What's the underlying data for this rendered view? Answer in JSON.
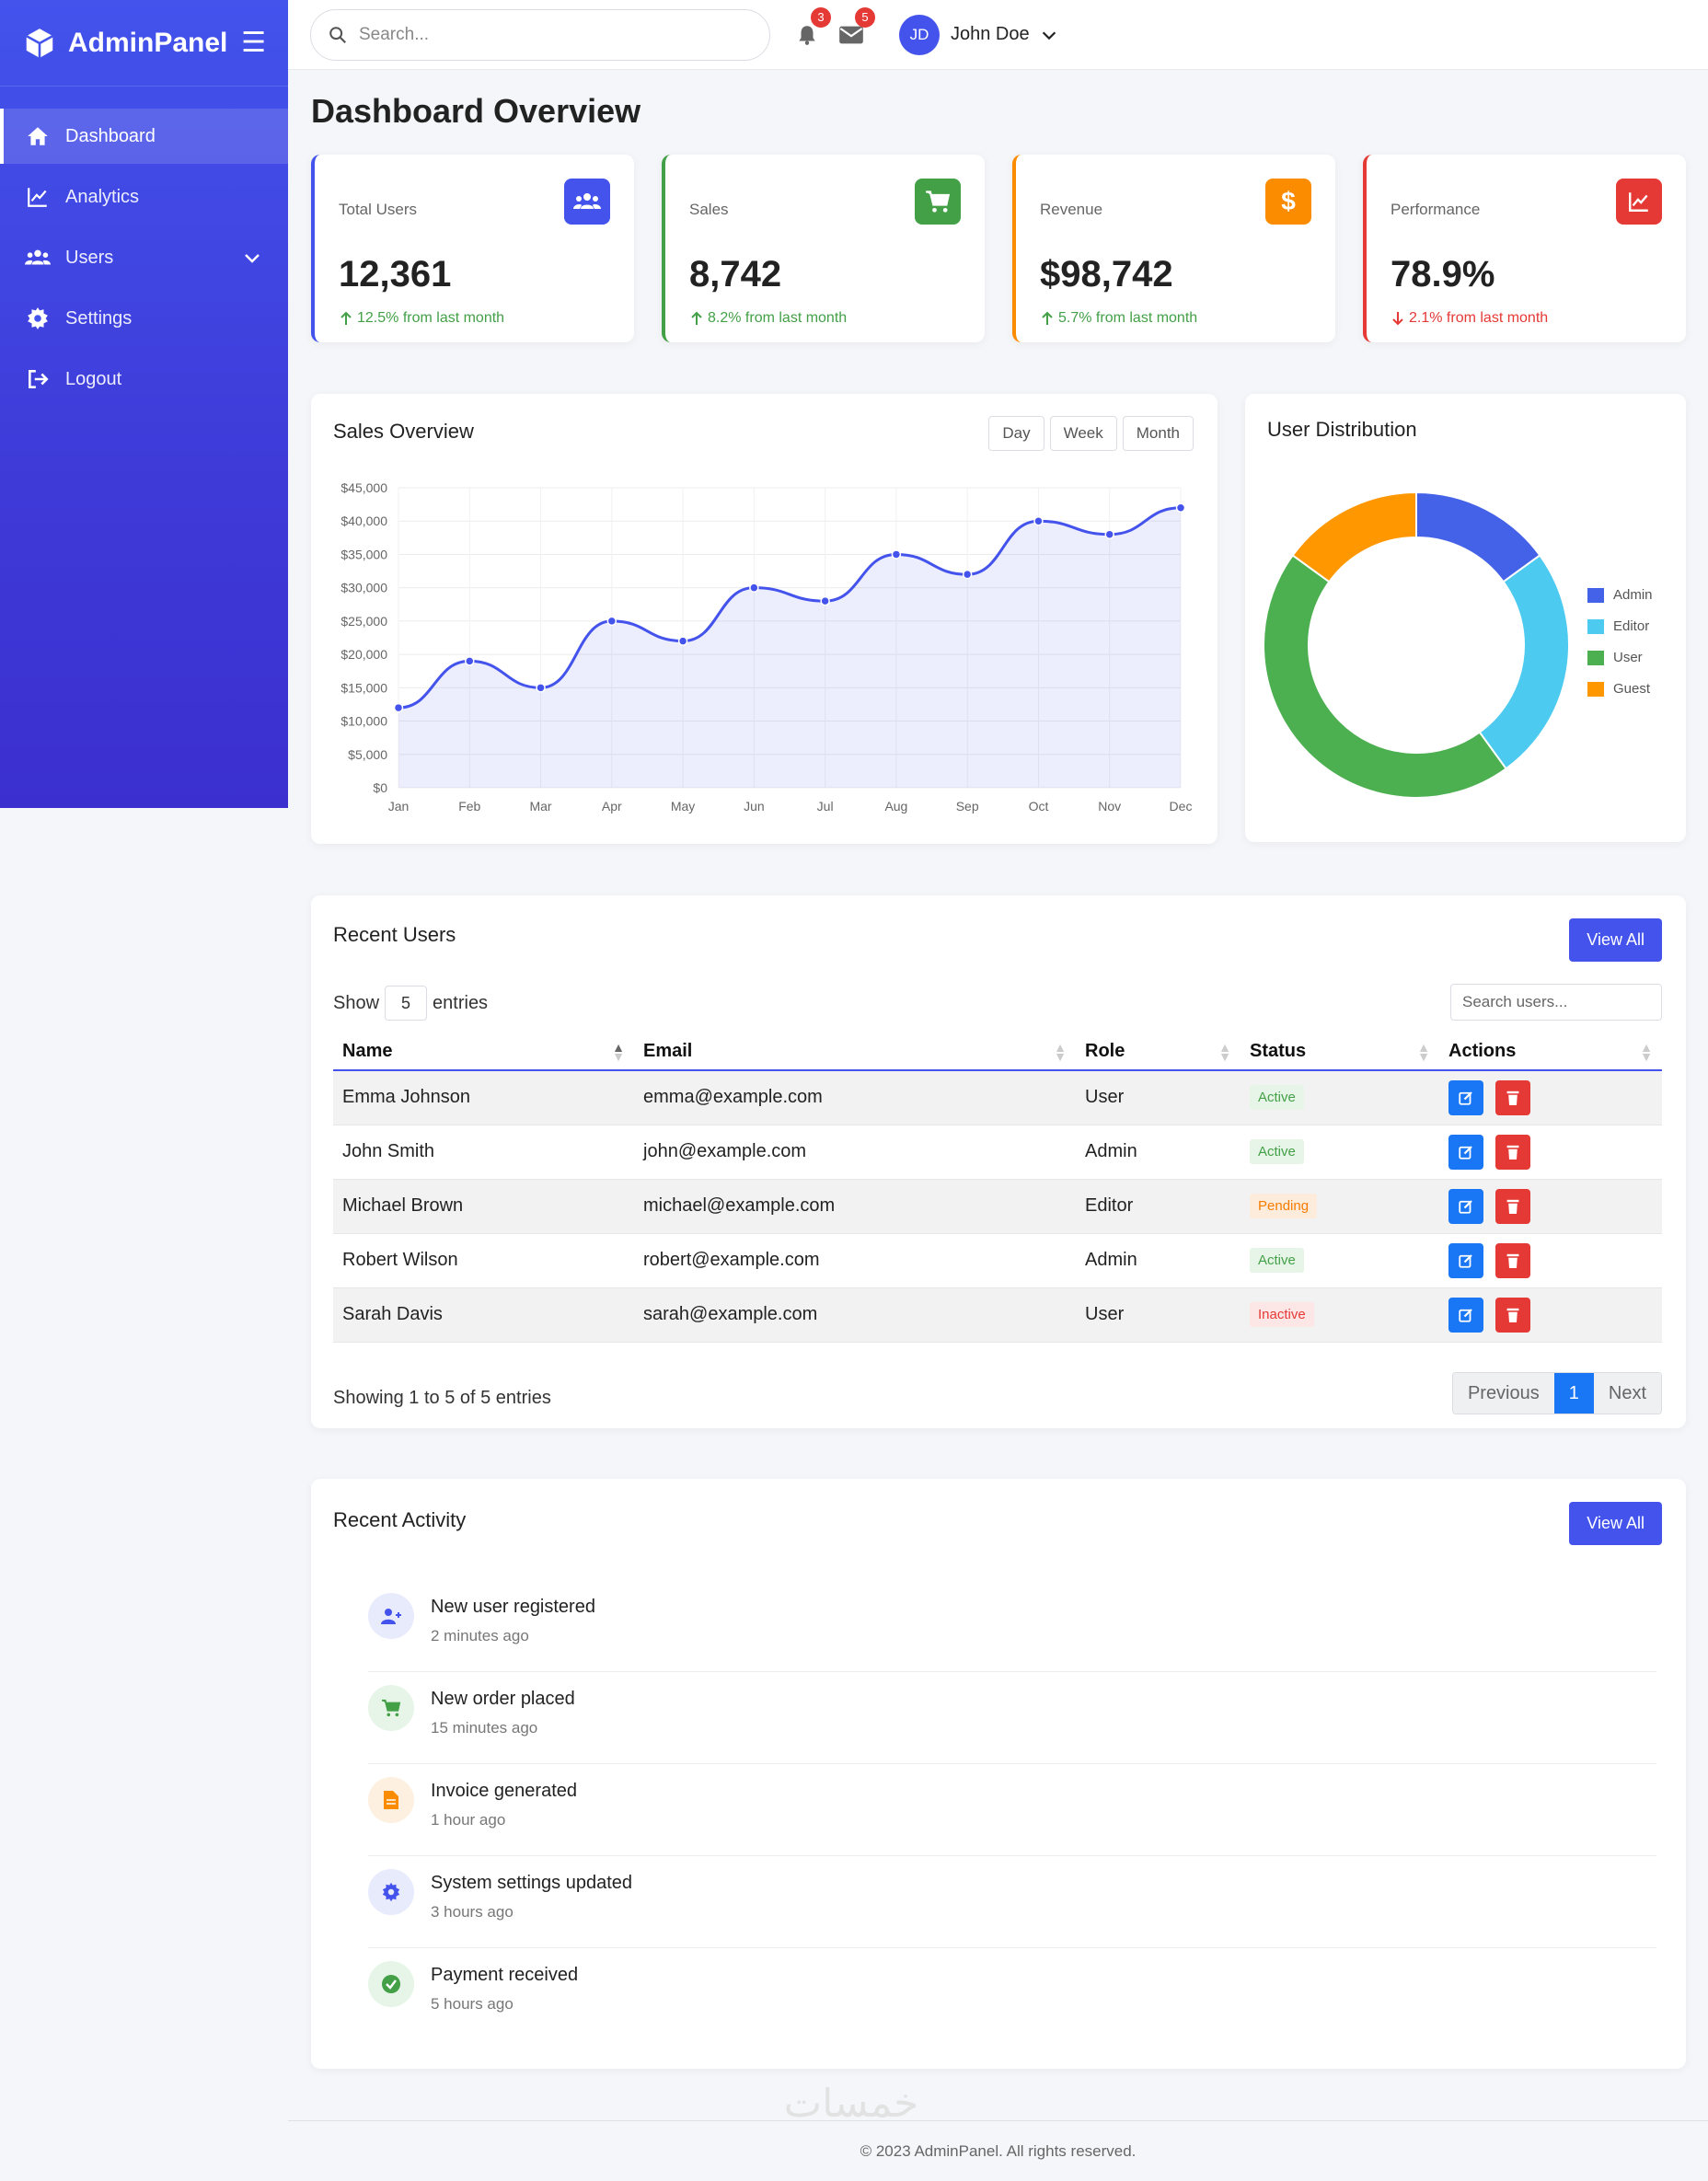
{
  "brand": {
    "name": "AdminPanel"
  },
  "sidebar": {
    "items": [
      {
        "label": "Dashboard",
        "icon": "home-icon"
      },
      {
        "label": "Analytics",
        "icon": "chart-line-icon"
      },
      {
        "label": "Users",
        "icon": "users-icon"
      },
      {
        "label": "Settings",
        "icon": "gear-icon"
      },
      {
        "label": "Logout",
        "icon": "logout-icon"
      }
    ]
  },
  "topbar": {
    "search_placeholder": "Search...",
    "notifications_count": "3",
    "messages_count": "5",
    "user_initials": "JD",
    "user_name": "John Doe"
  },
  "page": {
    "title": "Dashboard Overview"
  },
  "stats": [
    {
      "label": "Total Users",
      "value": "12,361",
      "change": "12.5% from last month",
      "trend": "up",
      "color": "#4353ec",
      "icon": "users-icon"
    },
    {
      "label": "Sales",
      "value": "8,742",
      "change": "8.2% from last month",
      "trend": "up",
      "color": "#43a047",
      "icon": "cart-icon"
    },
    {
      "label": "Revenue",
      "value": "$98,742",
      "change": "5.7% from last month",
      "trend": "up",
      "color": "#fb8c00",
      "icon": "dollar-icon"
    },
    {
      "label": "Performance",
      "value": "78.9%",
      "change": "2.1% from last month",
      "trend": "down",
      "color": "#e53935",
      "icon": "chart-icon"
    }
  ],
  "sales_panel": {
    "title": "Sales Overview",
    "ranges": [
      "Day",
      "Week",
      "Month"
    ]
  },
  "distribution_panel": {
    "title": "User Distribution"
  },
  "chart_data": [
    {
      "type": "area",
      "title": "Sales Overview",
      "categories": [
        "Jan",
        "Feb",
        "Mar",
        "Apr",
        "May",
        "Jun",
        "Jul",
        "Aug",
        "Sep",
        "Oct",
        "Nov",
        "Dec"
      ],
      "values": [
        12000,
        19000,
        15000,
        25000,
        22000,
        30000,
        28000,
        35000,
        32000,
        40000,
        38000,
        42000
      ],
      "ylim": [
        0,
        45000
      ],
      "yticks": [
        "$0",
        "$5,000",
        "$10,000",
        "$15,000",
        "$20,000",
        "$25,000",
        "$30,000",
        "$35,000",
        "$40,000",
        "$45,000"
      ],
      "grid": true,
      "color": "#4353ec"
    },
    {
      "type": "pie",
      "title": "User Distribution",
      "labels": [
        "Admin",
        "Editor",
        "User",
        "Guest"
      ],
      "values": [
        15,
        25,
        45,
        15
      ],
      "colors": [
        "#4462e8",
        "#4ccaf0",
        "#4caf50",
        "#ff9800"
      ],
      "legend": "right"
    }
  ],
  "recent_users": {
    "title": "Recent Users",
    "view_all": "View All",
    "show_label": "Show",
    "entries_value": "5",
    "entries_label": "entries",
    "search_placeholder": "Search users...",
    "columns": [
      "Name",
      "Email",
      "Role",
      "Status",
      "Actions"
    ],
    "rows": [
      {
        "name": "Emma Johnson",
        "email": "emma@example.com",
        "role": "User",
        "status": "Active"
      },
      {
        "name": "John Smith",
        "email": "john@example.com",
        "role": "Admin",
        "status": "Active"
      },
      {
        "name": "Michael Brown",
        "email": "michael@example.com",
        "role": "Editor",
        "status": "Pending"
      },
      {
        "name": "Robert Wilson",
        "email": "robert@example.com",
        "role": "Admin",
        "status": "Active"
      },
      {
        "name": "Sarah Davis",
        "email": "sarah@example.com",
        "role": "User",
        "status": "Inactive"
      }
    ],
    "showing": "Showing 1 to 5 of 5 entries",
    "pager": {
      "prev": "Previous",
      "current": "1",
      "next": "Next"
    }
  },
  "recent_activity": {
    "title": "Recent Activity",
    "view_all": "View All",
    "items": [
      {
        "title": "New user registered",
        "time": "2 minutes ago",
        "icon": "user-plus-icon",
        "color": "#4353ec",
        "bg": "#e8ebfc"
      },
      {
        "title": "New order placed",
        "time": "15 minutes ago",
        "icon": "cart-icon",
        "color": "#43a047",
        "bg": "#e7f5e8"
      },
      {
        "title": "Invoice generated",
        "time": "1 hour ago",
        "icon": "invoice-icon",
        "color": "#fb8c00",
        "bg": "#fdf0e0"
      },
      {
        "title": "System settings updated",
        "time": "3 hours ago",
        "icon": "gear-icon",
        "color": "#4353ec",
        "bg": "#e8ebfc"
      },
      {
        "title": "Payment received",
        "time": "5 hours ago",
        "icon": "check-circle-icon",
        "color": "#43a047",
        "bg": "#e7f5e8"
      }
    ]
  },
  "footer": {
    "text": "© 2023 AdminPanel. All rights reserved."
  },
  "watermark": {
    "text": "خمسات"
  }
}
